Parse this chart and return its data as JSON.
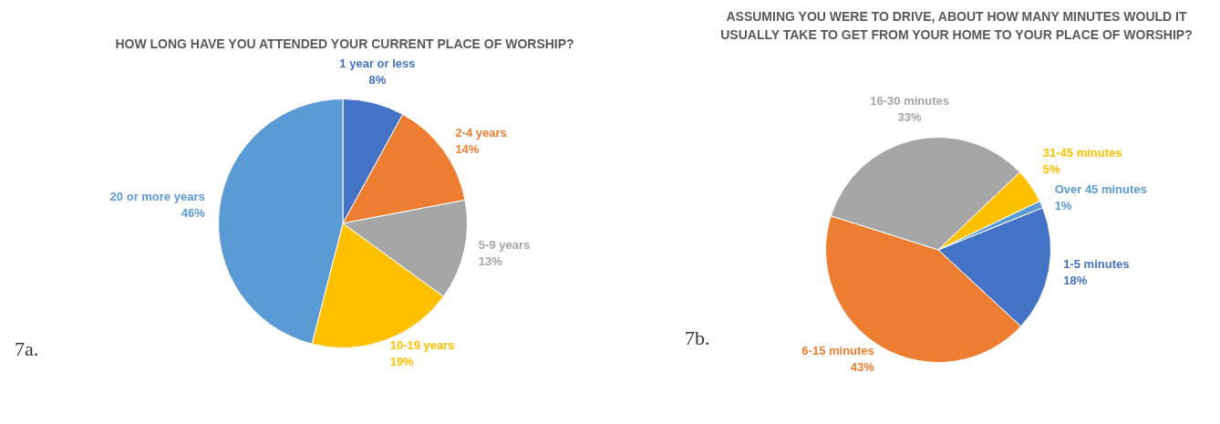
{
  "chart_data": [
    {
      "type": "pie",
      "title": "HOW LONG HAVE YOU ATTENDED YOUR CURRENT PLACE OF WORSHIP?",
      "categories": [
        "1 year or less",
        "2-4 years",
        "5-9 years",
        "10-19 years",
        "20 or more years"
      ],
      "values": [
        8,
        14,
        13,
        19,
        46
      ],
      "colors": [
        "#4472c4",
        "#ed7d31",
        "#a5a5a5",
        "#ffc000",
        "#5b9bd5"
      ],
      "value_labels": [
        "8%",
        "14%",
        "13%",
        "19%",
        "46%"
      ],
      "legend": false,
      "annotations": [
        "7a."
      ]
    },
    {
      "type": "pie",
      "title": "ASSUMING YOU WERE TO DRIVE, ABOUT HOW MANY MINUTES WOULD IT USUALLY TAKE TO GET FROM YOUR HOME TO YOUR PLACE OF WORSHIP?",
      "categories": [
        "1-5 minutes",
        "6-15 minutes",
        "16-30 minutes",
        "31-45 minutes",
        "Over 45 minutes"
      ],
      "values": [
        18,
        43,
        33,
        5,
        1
      ],
      "colors": [
        "#4472c4",
        "#ed7d31",
        "#a5a5a5",
        "#ffc000",
        "#5b9bd5"
      ],
      "value_labels": [
        "18%",
        "43%",
        "33%",
        "5%",
        "1%"
      ],
      "legend": false,
      "annotations": [
        "7b."
      ]
    }
  ]
}
